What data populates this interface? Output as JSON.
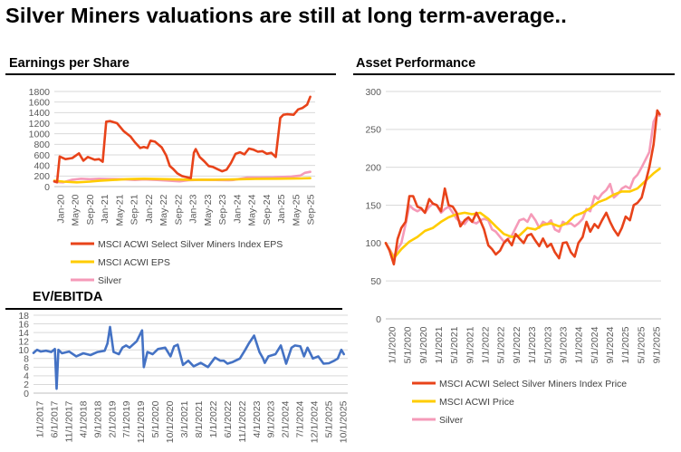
{
  "title": "Silver Miners valuations are still at long term-average..",
  "colors": {
    "miners": "#E8431A",
    "acwi": "#FFCC00",
    "silver": "#F59AB8",
    "ev": "#4472C4",
    "grid": "#D9D9D9"
  },
  "chart_data": [
    {
      "id": "eps",
      "type": "line",
      "title": "Earnings per Share",
      "ylim": [
        0,
        1800
      ],
      "yticks": [
        0,
        200,
        400,
        600,
        800,
        1000,
        1200,
        1400,
        1600,
        1800
      ],
      "xlim": [
        2020.0,
        2025.83
      ],
      "xtick_labels": [
        "Jan-20",
        "May-20",
        "Sep-20",
        "Jan-21",
        "May-21",
        "Sep-21",
        "Jan-22",
        "May-22",
        "Sep-22",
        "Jan-23",
        "May-23",
        "Sep-23",
        "Jan-24",
        "May-24",
        "Sep-24",
        "Jan-25",
        "May-25",
        "Sep-25"
      ],
      "series": [
        {
          "name": "MSCI ACWI Select Silver Miners Index EPS",
          "color_key": "miners",
          "x": [
            2020.0,
            2020.06,
            2020.12,
            2020.25,
            2020.4,
            2020.55,
            2020.65,
            2020.75,
            2020.9,
            2021.0,
            2021.08,
            2021.16,
            2021.25,
            2021.4,
            2021.55,
            2021.7,
            2021.8,
            2021.92,
            2022.0,
            2022.08,
            2022.15,
            2022.25,
            2022.4,
            2022.5,
            2022.58,
            2022.65,
            2022.75,
            2022.85,
            2022.95,
            2023.05,
            2023.12,
            2023.16,
            2023.25,
            2023.35,
            2023.45,
            2023.55,
            2023.65,
            2023.75,
            2023.85,
            2023.95,
            2024.05,
            2024.15,
            2024.25,
            2024.35,
            2024.45,
            2024.55,
            2024.65,
            2024.75,
            2024.85,
            2024.95,
            2025.05,
            2025.12,
            2025.2,
            2025.35,
            2025.45,
            2025.55,
            2025.65,
            2025.72
          ],
          "y": [
            100,
            80,
            570,
            520,
            540,
            630,
            490,
            560,
            510,
            520,
            470,
            1230,
            1240,
            1200,
            1050,
            950,
            840,
            730,
            750,
            730,
            870,
            850,
            740,
            590,
            390,
            340,
            250,
            200,
            180,
            160,
            640,
            710,
            560,
            480,
            390,
            370,
            330,
            290,
            320,
            450,
            620,
            650,
            610,
            720,
            700,
            660,
            670,
            620,
            640,
            560,
            1300,
            1360,
            1370,
            1360,
            1460,
            1490,
            1550,
            1700
          ]
        },
        {
          "name": "MSCI ACWI EPS",
          "color_key": "acwi",
          "x": [
            2020.0,
            2020.2,
            2020.5,
            2020.8,
            2021.0,
            2021.3,
            2021.6,
            2022.0,
            2022.5,
            2023.0,
            2023.5,
            2024.0,
            2024.5,
            2025.0,
            2025.5,
            2025.72
          ],
          "y": [
            110,
            95,
            80,
            95,
            110,
            125,
            140,
            150,
            140,
            130,
            130,
            135,
            145,
            150,
            155,
            160
          ]
        },
        {
          "name": "Silver",
          "color_key": "silver",
          "x": [
            2020.0,
            2020.2,
            2020.4,
            2020.6,
            2020.8,
            2021.0,
            2021.2,
            2021.5,
            2021.8,
            2022.0,
            2022.3,
            2022.6,
            2022.8,
            2023.0,
            2023.3,
            2023.6,
            2023.9,
            2024.0,
            2024.3,
            2024.6,
            2024.9,
            2025.0,
            2025.3,
            2025.5,
            2025.6,
            2025.72
          ],
          "y": [
            90,
            80,
            130,
            150,
            140,
            150,
            145,
            140,
            125,
            135,
            125,
            110,
            100,
            120,
            130,
            125,
            120,
            125,
            170,
            170,
            175,
            180,
            190,
            210,
            260,
            280
          ]
        }
      ]
    },
    {
      "id": "ev",
      "type": "line",
      "title": "EV/EBITDA",
      "ylim": [
        0,
        18
      ],
      "yticks": [
        0,
        2,
        4,
        6,
        8,
        10,
        12,
        14,
        16,
        18
      ],
      "xlim": [
        2017.0,
        2025.83
      ],
      "xtick_labels": [
        "1/1/2017",
        "6/1/2017",
        "11/1/2017",
        "4/1/2018",
        "9/1/2018",
        "2/1/2019",
        "7/1/2019",
        "12/1/2019",
        "5/1/2020",
        "10/1/2020",
        "3/1/2021",
        "8/1/2021",
        "1/1/2022",
        "6/1/2022",
        "11/1/2022",
        "4/1/2023",
        "9/1/2023",
        "2/1/2024",
        "7/1/2024",
        "12/1/2024",
        "5/1/2025",
        "10/1/2025"
      ],
      "series": [
        {
          "name": "EV/EBITDA",
          "color_key": "ev",
          "x": [
            2017.0,
            2017.1,
            2017.2,
            2017.35,
            2017.5,
            2017.6,
            2017.65,
            2017.7,
            2017.8,
            2018.0,
            2018.2,
            2018.4,
            2018.6,
            2018.8,
            2019.0,
            2019.08,
            2019.15,
            2019.25,
            2019.4,
            2019.5,
            2019.6,
            2019.7,
            2019.9,
            2020.05,
            2020.1,
            2020.2,
            2020.35,
            2020.5,
            2020.7,
            2020.85,
            2020.95,
            2021.05,
            2021.2,
            2021.35,
            2021.5,
            2021.7,
            2021.9,
            2022.1,
            2022.25,
            2022.35,
            2022.45,
            2022.6,
            2022.8,
            2022.95,
            2023.05,
            2023.2,
            2023.35,
            2023.45,
            2023.5,
            2023.6,
            2023.8,
            2023.95,
            2024.1,
            2024.25,
            2024.35,
            2024.5,
            2024.6,
            2024.7,
            2024.85,
            2025.0,
            2025.15,
            2025.3,
            2025.45,
            2025.55,
            2025.65,
            2025.72
          ],
          "y": [
            9.3,
            10.0,
            9.6,
            9.8,
            9.5,
            10.2,
            1.0,
            10.0,
            9.2,
            9.6,
            8.5,
            9.2,
            8.8,
            9.5,
            9.8,
            11.5,
            15.3,
            9.5,
            9.0,
            10.5,
            11.0,
            10.5,
            12.0,
            14.5,
            6.0,
            9.5,
            9.0,
            10.2,
            10.5,
            8.5,
            10.8,
            11.2,
            6.5,
            7.5,
            6.2,
            7.0,
            6.0,
            8.2,
            7.5,
            7.5,
            6.8,
            7.2,
            8.0,
            10.0,
            11.5,
            13.3,
            9.5,
            8.0,
            7.0,
            8.5,
            9.0,
            11.0,
            6.8,
            10.5,
            11.0,
            10.8,
            8.5,
            10.5,
            8.0,
            8.5,
            6.8,
            6.9,
            7.5,
            8.0,
            10.0,
            9.0
          ]
        }
      ]
    },
    {
      "id": "asset",
      "type": "line",
      "title": "Asset Performance",
      "ylim": [
        0,
        300
      ],
      "yticks": [
        0,
        50,
        100,
        150,
        200,
        250,
        300
      ],
      "xlim": [
        2020.0,
        2025.83
      ],
      "xtick_labels": [
        "1/1/2020",
        "5/1/2020",
        "9/1/2020",
        "1/1/2021",
        "5/1/2021",
        "9/1/2021",
        "1/1/2022",
        "5/1/2022",
        "9/1/2022",
        "1/1/2023",
        "5/1/2023",
        "9/1/2023",
        "1/1/2024",
        "5/1/2024",
        "9/1/2024",
        "1/1/2025",
        "5/1/2025",
        "9/1/2025"
      ],
      "series": [
        {
          "name": "MSCI ACWI Select Silver Miners Index Price",
          "color_key": "miners",
          "x": [
            2020.0,
            2020.08,
            2020.17,
            2020.25,
            2020.33,
            2020.42,
            2020.5,
            2020.58,
            2020.67,
            2020.75,
            2020.83,
            2020.92,
            2021.0,
            2021.08,
            2021.17,
            2021.25,
            2021.33,
            2021.42,
            2021.5,
            2021.58,
            2021.67,
            2021.75,
            2021.83,
            2021.92,
            2022.0,
            2022.08,
            2022.17,
            2022.25,
            2022.33,
            2022.42,
            2022.5,
            2022.58,
            2022.67,
            2022.75,
            2022.83,
            2022.92,
            2023.0,
            2023.08,
            2023.17,
            2023.25,
            2023.33,
            2023.42,
            2023.5,
            2023.58,
            2023.67,
            2023.75,
            2023.83,
            2023.92,
            2024.0,
            2024.08,
            2024.17,
            2024.25,
            2024.33,
            2024.42,
            2024.5,
            2024.58,
            2024.67,
            2024.75,
            2024.83,
            2024.92,
            2025.0,
            2025.08,
            2025.17,
            2025.25,
            2025.33,
            2025.42,
            2025.5,
            2025.58,
            2025.67,
            2025.75,
            2025.8
          ],
          "y": [
            100,
            90,
            72,
            105,
            120,
            128,
            162,
            162,
            148,
            146,
            140,
            158,
            152,
            150,
            142,
            172,
            150,
            148,
            140,
            122,
            130,
            134,
            128,
            140,
            130,
            118,
            97,
            92,
            85,
            90,
            100,
            105,
            97,
            112,
            106,
            100,
            110,
            112,
            103,
            96,
            106,
            95,
            99,
            88,
            80,
            100,
            101,
            88,
            82,
            100,
            108,
            128,
            115,
            125,
            120,
            130,
            140,
            128,
            118,
            110,
            120,
            135,
            130,
            150,
            153,
            160,
            180,
            200,
            230,
            275,
            270
          ]
        },
        {
          "name": "MSCI ACWI Price",
          "color_key": "acwi",
          "x": [
            2020.0,
            2020.17,
            2020.33,
            2020.5,
            2020.67,
            2020.83,
            2021.0,
            2021.17,
            2021.33,
            2021.5,
            2021.67,
            2021.83,
            2022.0,
            2022.17,
            2022.33,
            2022.5,
            2022.67,
            2022.83,
            2023.0,
            2023.17,
            2023.33,
            2023.5,
            2023.67,
            2023.83,
            2024.0,
            2024.17,
            2024.33,
            2024.5,
            2024.67,
            2024.83,
            2025.0,
            2025.17,
            2025.33,
            2025.5,
            2025.67,
            2025.8
          ],
          "y": [
            100,
            80,
            92,
            102,
            108,
            116,
            120,
            128,
            134,
            138,
            140,
            138,
            140,
            132,
            122,
            112,
            108,
            110,
            120,
            118,
            124,
            126,
            122,
            126,
            136,
            140,
            146,
            154,
            158,
            164,
            168,
            168,
            172,
            182,
            192,
            198
          ]
        },
        {
          "name": "Silver",
          "color_key": "silver",
          "x": [
            2020.0,
            2020.08,
            2020.17,
            2020.25,
            2020.33,
            2020.42,
            2020.5,
            2020.58,
            2020.67,
            2020.75,
            2020.83,
            2020.92,
            2021.0,
            2021.08,
            2021.17,
            2021.25,
            2021.33,
            2021.42,
            2021.5,
            2021.58,
            2021.67,
            2021.75,
            2021.83,
            2021.92,
            2022.0,
            2022.08,
            2022.17,
            2022.25,
            2022.33,
            2022.42,
            2022.5,
            2022.58,
            2022.67,
            2022.75,
            2022.83,
            2022.92,
            2023.0,
            2023.08,
            2023.17,
            2023.25,
            2023.33,
            2023.42,
            2023.5,
            2023.58,
            2023.67,
            2023.75,
            2023.83,
            2023.92,
            2024.0,
            2024.08,
            2024.17,
            2024.25,
            2024.33,
            2024.42,
            2024.5,
            2024.58,
            2024.67,
            2024.75,
            2024.83,
            2024.92,
            2025.0,
            2025.08,
            2025.17,
            2025.25,
            2025.33,
            2025.42,
            2025.5,
            2025.58,
            2025.67,
            2025.75,
            2025.8
          ],
          "y": [
            100,
            92,
            82,
            92,
            100,
            125,
            150,
            145,
            142,
            145,
            140,
            148,
            152,
            150,
            140,
            145,
            148,
            140,
            132,
            128,
            125,
            132,
            128,
            126,
            130,
            132,
            130,
            118,
            115,
            108,
            102,
            105,
            110,
            120,
            130,
            132,
            128,
            138,
            130,
            120,
            128,
            125,
            130,
            118,
            115,
            128,
            125,
            126,
            122,
            126,
            132,
            145,
            142,
            162,
            158,
            165,
            170,
            178,
            160,
            165,
            172,
            175,
            172,
            185,
            190,
            200,
            210,
            220,
            260,
            270,
            268
          ]
        }
      ]
    }
  ]
}
